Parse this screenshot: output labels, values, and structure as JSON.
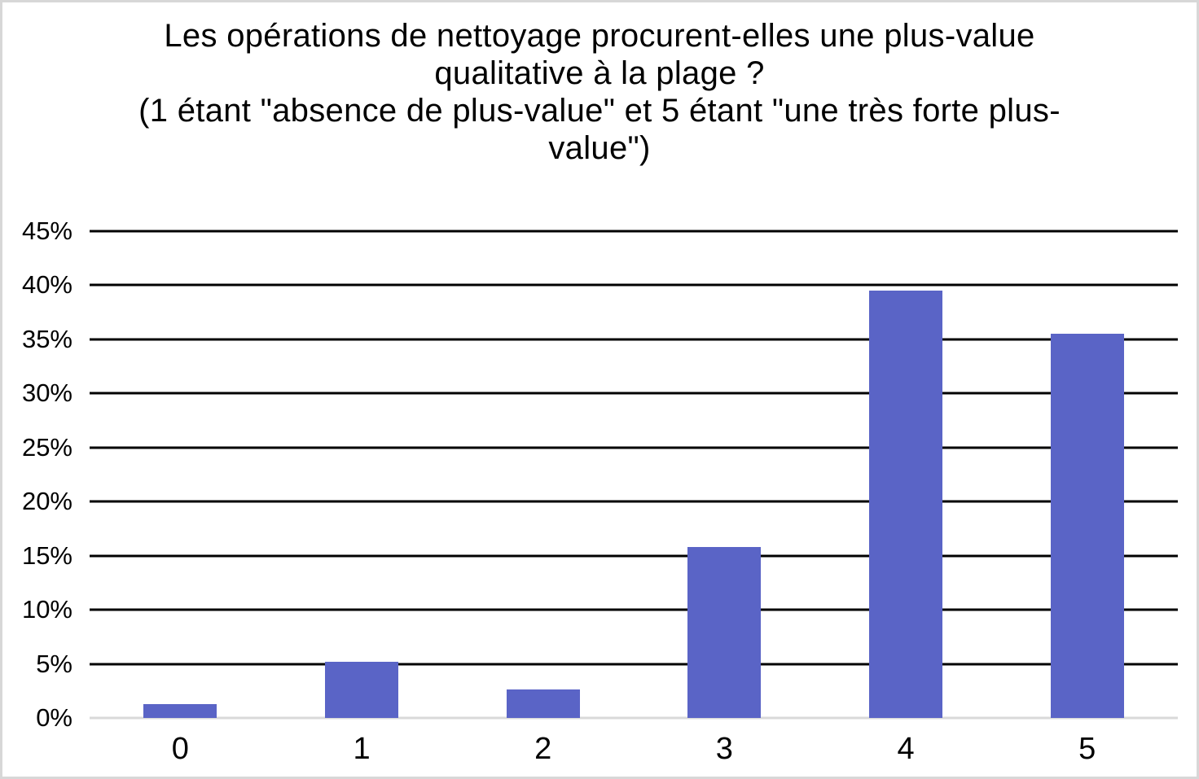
{
  "chart_data": {
    "type": "bar",
    "title": "Les opérations de nettoyage procurent-elles une plus-value qualitative à la plage ?",
    "subtitle": "(1 étant \"absence de plus-value\" et 5 étant \"une très forte plus-value\")",
    "categories": [
      "0",
      "1",
      "2",
      "3",
      "4",
      "5"
    ],
    "values": [
      1.3,
      5.2,
      2.6,
      15.8,
      39.5,
      35.5
    ],
    "unit": "%",
    "ylim": [
      0,
      45
    ],
    "ytick_values": [
      45,
      40,
      35,
      30,
      25,
      20,
      15,
      10,
      5,
      0
    ],
    "ytick_labels": [
      "45%",
      "40%",
      "35%",
      "30%",
      "25%",
      "20%",
      "15%",
      "10%",
      "5%",
      "0%"
    ],
    "grid": "horizontal",
    "legend": "none",
    "colors": {
      "bar": "#5a64c6",
      "gridline": "#000000",
      "baseline": "#d9d9d9",
      "text": "#000000",
      "canvas_border": "#d7d7d7",
      "background": "#ffffff"
    }
  }
}
